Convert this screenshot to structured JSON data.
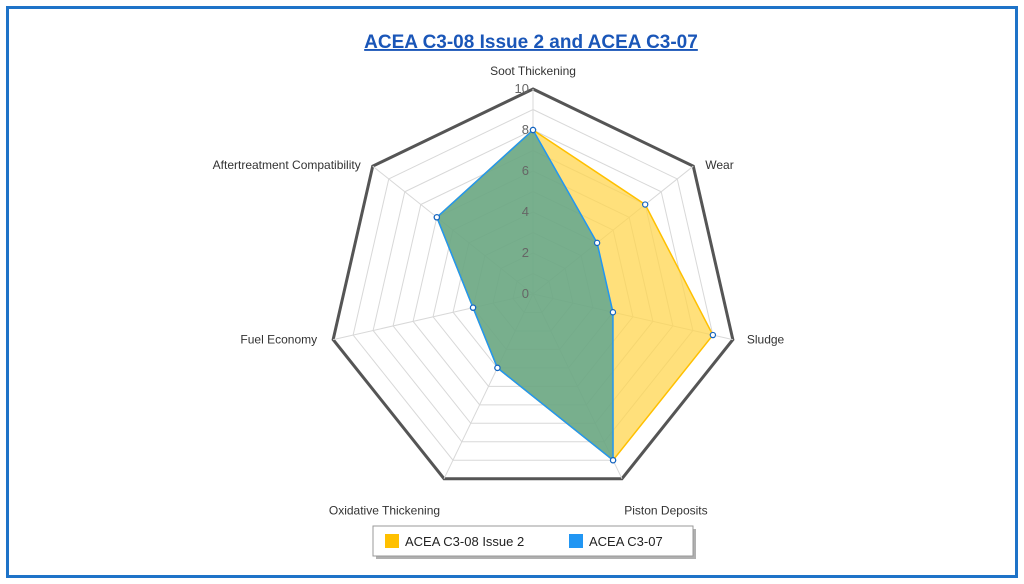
{
  "chart_data": {
    "type": "radar",
    "title": "ACEA C3-08 Issue 2 and ACEA C3-07",
    "axes": [
      "Soot Thickening",
      "Wear",
      "Sludge",
      "Piston Deposits",
      "Oxidative Thickening",
      "Fuel Economy",
      "Aftertreatment Compatibility"
    ],
    "rlim": [
      0,
      10
    ],
    "ticks": [
      "0",
      "2",
      "4",
      "6",
      "8",
      "10"
    ],
    "tick_values": [
      0,
      2,
      4,
      6,
      8,
      10
    ],
    "series": [
      {
        "name": "ACEA C3-08 Issue 2",
        "color": "#ffc000",
        "values": [
          8,
          7,
          9,
          9,
          4,
          3,
          6
        ]
      },
      {
        "name": "ACEA C3-07",
        "color": "#2196f3",
        "values": [
          8,
          4,
          4,
          9,
          4,
          3,
          6
        ]
      }
    ],
    "legend_position": "bottom-center",
    "grid": true
  }
}
